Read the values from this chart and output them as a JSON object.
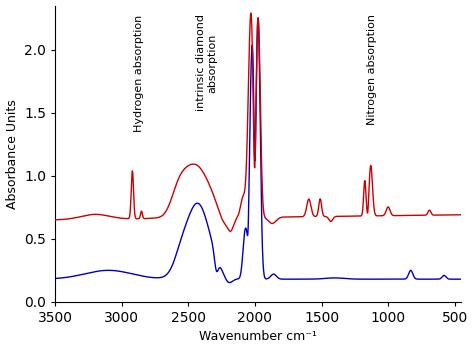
{
  "title": "",
  "xlabel": "Wavenumber cm⁻¹",
  "ylabel": "Absorbance Units",
  "xlim": [
    3500,
    450
  ],
  "ylim": [
    0.0,
    2.35
  ],
  "yticks": [
    0.0,
    0.5,
    1.0,
    1.5,
    2.0
  ],
  "xticks": [
    3500,
    3000,
    2500,
    2000,
    1500,
    1000,
    500
  ],
  "red_color": "#cc0000",
  "blue_color": "#0000bb",
  "ann_fontsize": 8.0,
  "annotations": [
    {
      "text": "Hydrogen absorption",
      "x": 2870,
      "rotation": 90
    },
    {
      "text": "intrinsic diamond\nabsorption",
      "x": 2360,
      "rotation": 90
    },
    {
      "text": "Nitrogen absorption",
      "x": 1120,
      "rotation": 90
    }
  ]
}
